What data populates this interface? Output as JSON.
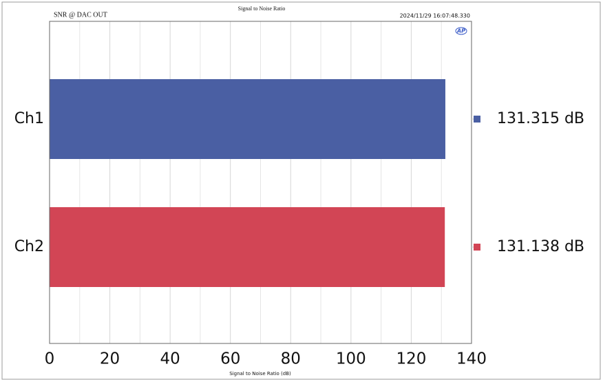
{
  "chart_data": {
    "type": "hbar",
    "title": "Signal to Noise Ratio",
    "subtitle": "SNR @ DAC OUT",
    "timestamp": "2024/11/29 16:07:48.330",
    "logo": "AP",
    "x_label": "Signal to Noise Ratio (dB)",
    "categories": [
      "Ch1",
      "Ch2"
    ],
    "values": [
      131.315,
      131.138
    ],
    "value_labels": [
      "131.315 dB",
      "131.138 dB"
    ],
    "colors": [
      "#4a5fa3",
      "#d24555"
    ],
    "xlim": [
      0,
      140
    ],
    "xticks": [
      0,
      20,
      40,
      60,
      80,
      100,
      120,
      140
    ],
    "xminor": [
      10,
      30,
      50,
      70,
      90,
      110,
      130
    ],
    "grid": true
  }
}
